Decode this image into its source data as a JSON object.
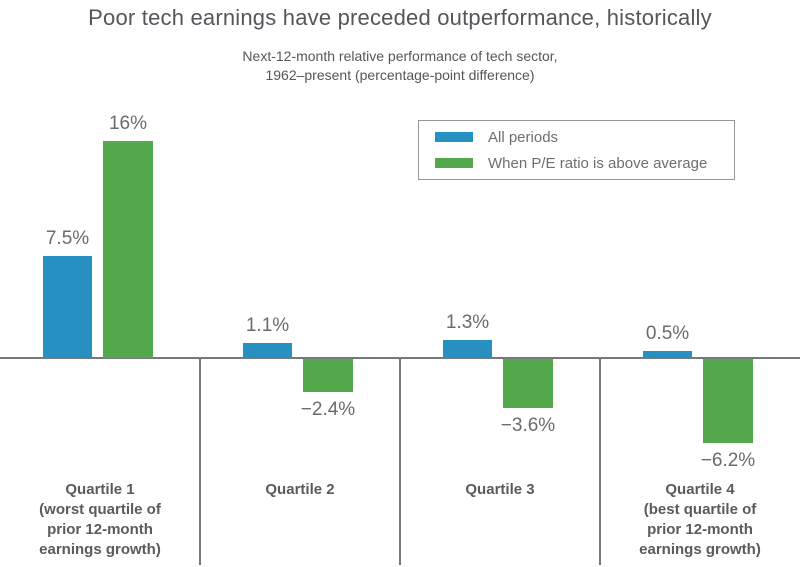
{
  "title": "Poor tech earnings have preceded outperformance, historically",
  "subtitle": {
    "line1": "Next-12-month relative performance of tech sector,",
    "line2": "1962–present (percentage-point difference)"
  },
  "legend": {
    "items": [
      {
        "label": "All periods",
        "color": "#2690C3"
      },
      {
        "label": "When P/E ratio is above average",
        "color": "#52A84A"
      }
    ]
  },
  "colors": {
    "blue": "#2690C3",
    "green": "#52A84A",
    "axis_gray": "#77787B",
    "text_gray": "#55565B"
  },
  "chart_data": {
    "type": "bar",
    "title": "Poor tech earnings have preceded outperformance, historically",
    "subtitle": "Next-12-month relative performance of tech sector, 1962–present (percentage-point difference)",
    "categories": [
      "Quartile 1",
      "Quartile 2",
      "Quartile 3",
      "Quartile 4"
    ],
    "category_notes": [
      [
        "(worst quartile of",
        "prior 12-month",
        "earnings growth)"
      ],
      [],
      [],
      [
        "(best quartile of",
        "prior 12-month",
        "earnings growth)"
      ]
    ],
    "series": [
      {
        "name": "All periods",
        "color": "#2690C3",
        "values": [
          7.5,
          1.1,
          1.3,
          0.5
        ],
        "labels": [
          "7.5%",
          "1.1%",
          "1.3%",
          "0.5%"
        ]
      },
      {
        "name": "When P/E ratio is above average",
        "color": "#52A84A",
        "values": [
          16,
          -2.4,
          -3.6,
          -6.2
        ],
        "labels": [
          "16%",
          "−2.4%",
          "−3.6%",
          "−6.2%"
        ]
      }
    ],
    "xlabel": "",
    "ylabel": "",
    "ylim": [
      -8,
      18
    ],
    "baseline": 0,
    "grid": false,
    "axis_labels_shown": false,
    "legend_position": "top-right"
  }
}
